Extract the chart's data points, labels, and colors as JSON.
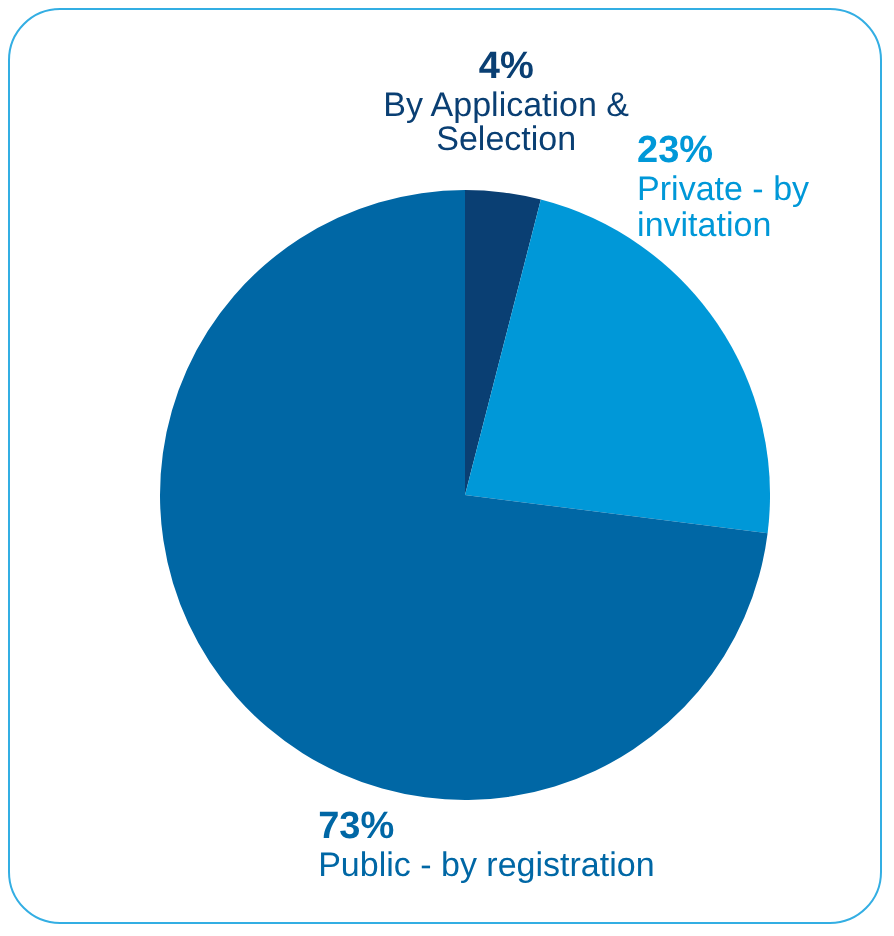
{
  "chart_data": {
    "type": "pie",
    "categories": [
      "By Application & Selection",
      "Private - by invitation",
      "Public - by registration"
    ],
    "values": [
      4,
      23,
      73
    ],
    "colors": [
      "#0a3f73",
      "#0098d8",
      "#0067a5"
    ],
    "value_labels": [
      "4%",
      "23%",
      "73%"
    ],
    "legend": false
  }
}
